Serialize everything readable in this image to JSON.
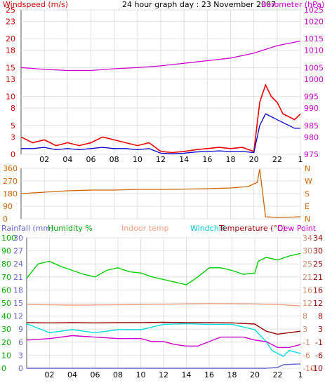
{
  "header": {
    "title": "24 hour graph day : 23 November 2007",
    "left_label": "Windspeed (m/s)",
    "right_label": "Barometer (hPa)"
  },
  "colors": {
    "wind_avg": "#0000cc",
    "wind_gust": "#ee0000",
    "barometer": "#cc00cc",
    "direction": "#cc6600",
    "humidity": "#00cc00",
    "indoor": "#f0a080",
    "windchill": "#00dddd",
    "temperature": "#990000",
    "dewpoint": "#cc00cc",
    "rainfall": "#6666cc",
    "axis_left": "#cc0000",
    "axis_right": "#cc00cc",
    "grid": "#e0e0e0"
  },
  "chart_data": [
    {
      "type": "line",
      "title": "24 hour graph day : 23 November 2007",
      "xlabel": "",
      "x_tick_labels": [
        "02",
        "04",
        "06",
        "08",
        "10",
        "12",
        "14",
        "16",
        "18",
        "20",
        "22",
        "1"
      ],
      "ylabel": "Windspeed (m/s)",
      "y_ticks": [
        0,
        3,
        5,
        8,
        10,
        13,
        15,
        18,
        20,
        23,
        25
      ],
      "ylim": [
        0,
        25
      ],
      "y2label": "Barometer (hPa)",
      "y2_ticks": [
        975,
        980,
        985,
        990,
        995,
        1000,
        1005,
        1010,
        1015,
        1020,
        1025
      ],
      "y2lim": [
        975,
        1025
      ],
      "series": [
        {
          "name": "Barometer",
          "axis": "right",
          "x": [
            0,
            2,
            4,
            6,
            8,
            10,
            12,
            14,
            16,
            18,
            20,
            22,
            24
          ],
          "values": [
            1005,
            1004.4,
            1004,
            1004,
            1004.6,
            1005,
            1005.6,
            1006.5,
            1007.4,
            1008.3,
            1010,
            1012.6,
            1014.2
          ]
        },
        {
          "name": "Wind gust",
          "axis": "left",
          "x": [
            0,
            1,
            2,
            3,
            4,
            5,
            6,
            7,
            8,
            9,
            10,
            11,
            12,
            13,
            14,
            15,
            16,
            17,
            18,
            19,
            20,
            20.5,
            21,
            21.5,
            22,
            22.5,
            23,
            23.5,
            24
          ],
          "values": [
            3,
            2,
            2.5,
            1.5,
            2,
            1.5,
            2,
            3,
            2.5,
            2,
            1.5,
            2,
            0.5,
            0.3,
            0.5,
            0.8,
            1,
            1.2,
            1,
            1.2,
            0.5,
            9,
            12,
            10,
            9,
            7,
            6.5,
            6,
            7
          ]
        },
        {
          "name": "Wind average",
          "axis": "left",
          "x": [
            0,
            1,
            2,
            3,
            4,
            5,
            6,
            7,
            8,
            9,
            10,
            11,
            12,
            13,
            14,
            15,
            16,
            17,
            18,
            19,
            20,
            20.5,
            21,
            21.5,
            22,
            22.5,
            23,
            23.5,
            24
          ],
          "values": [
            1,
            1,
            1.2,
            0.8,
            1,
            0.8,
            1,
            1.2,
            1,
            1,
            0.8,
            1,
            0.2,
            0.1,
            0.2,
            0.4,
            0.5,
            0.6,
            0.5,
            0.5,
            0.3,
            5,
            7,
            6.5,
            6,
            5.5,
            5,
            4.5,
            4.5
          ]
        }
      ]
    },
    {
      "type": "line",
      "xlabel": "",
      "ylabel": "",
      "y_ticks": [
        0,
        90,
        180,
        270,
        360
      ],
      "ylim": [
        0,
        360
      ],
      "y2_tick_labels": [
        "N",
        "W",
        "S",
        "E",
        "N"
      ],
      "series": [
        {
          "name": "Wind direction",
          "x": [
            0,
            2,
            4,
            6,
            8,
            10,
            12,
            14,
            16,
            18,
            19.5,
            20.3,
            20.5,
            21,
            22,
            23,
            24
          ],
          "values": [
            180,
            190,
            200,
            205,
            205,
            210,
            210,
            212,
            215,
            220,
            230,
            260,
            355,
            15,
            10,
            12,
            15
          ]
        }
      ]
    },
    {
      "type": "line",
      "xlabel": "",
      "x_tick_labels": [
        "02",
        "04",
        "06",
        "08",
        "10",
        "12",
        "14",
        "16",
        "18",
        "20",
        "22",
        "1"
      ],
      "left_axes": [
        {
          "label": "Rainfall (mm)",
          "ticks": [
            0,
            3,
            6,
            9,
            12,
            15,
            18,
            21,
            24,
            27,
            30
          ],
          "lim": [
            0,
            30
          ]
        },
        {
          "label": "Humidity %",
          "ticks": [
            0,
            10,
            20,
            30,
            40,
            50,
            60,
            70,
            80,
            90,
            100
          ],
          "lim": [
            0,
            100
          ]
        }
      ],
      "right_axes": [
        {
          "label": "Temperature (°C)",
          "ticks": [
            -10,
            -6,
            -1,
            3,
            8,
            12,
            16,
            21,
            25,
            30,
            34
          ],
          "lim": [
            -10,
            34
          ]
        },
        {
          "label": "Dew Point",
          "ticks": [
            -10,
            -6,
            -1,
            3,
            8,
            12,
            16,
            21,
            25,
            30,
            34
          ],
          "lim": [
            -10,
            34
          ]
        }
      ],
      "legend": [
        "Rainfall (mm)",
        "Humidity %",
        "Indoor temp",
        "Windchill",
        "Temperature (°C)",
        "Dew Point"
      ],
      "series": [
        {
          "name": "Humidity %",
          "x": [
            0,
            1,
            2,
            3,
            4,
            5,
            6,
            7,
            8,
            9,
            10,
            11,
            12,
            13,
            14,
            15,
            16,
            17,
            18,
            19,
            20,
            20.3,
            21,
            22,
            23,
            24
          ],
          "values": [
            69,
            80,
            82,
            78,
            75,
            72,
            70,
            75,
            77,
            74,
            73,
            70,
            68,
            66,
            64,
            70,
            77,
            77,
            75,
            72,
            73,
            82,
            85,
            83,
            86,
            88
          ]
        },
        {
          "name": "Indoor temp",
          "x": [
            0,
            4,
            8,
            12,
            16,
            20,
            22,
            24
          ],
          "values": [
            11.5,
            11.3,
            11.4,
            11.6,
            11.8,
            11.7,
            11.5,
            11
          ]
        },
        {
          "name": "Temperature (°C)",
          "x": [
            0,
            2,
            4,
            6,
            8,
            10,
            12,
            14,
            16,
            18,
            20,
            21,
            22,
            23,
            24
          ],
          "values": [
            5.4,
            5.3,
            5.4,
            5.3,
            5.4,
            5.4,
            5.5,
            5.4,
            5.4,
            5.3,
            4.9,
            2.5,
            1.5,
            2,
            2.5
          ]
        },
        {
          "name": "Windchill",
          "x": [
            0,
            2,
            4,
            6,
            8,
            10,
            12,
            14,
            16,
            18,
            20,
            21,
            21.5,
            22,
            22.5,
            23,
            24
          ],
          "values": [
            5,
            2,
            3,
            2,
            3,
            3,
            4.8,
            5,
            4.8,
            4.8,
            3,
            -1,
            -4,
            -5,
            -6,
            -4,
            -5
          ]
        },
        {
          "name": "Dew Point",
          "x": [
            0,
            2,
            4,
            6,
            8,
            10,
            11,
            12,
            13,
            14,
            15,
            16,
            17,
            18,
            19,
            20,
            21,
            22,
            23,
            24
          ],
          "values": [
            -0.5,
            0,
            1,
            0.5,
            0,
            0,
            -1,
            -1,
            -2,
            -2.5,
            -2.5,
            -1,
            0.5,
            0.5,
            0.5,
            -0.5,
            -1,
            -3,
            -3,
            -2
          ]
        },
        {
          "name": "Rainfall (mm)",
          "x": [
            0,
            20,
            21,
            22,
            22.5,
            24
          ],
          "values": [
            0,
            0,
            0,
            0.2,
            0.8,
            1
          ]
        }
      ]
    }
  ]
}
